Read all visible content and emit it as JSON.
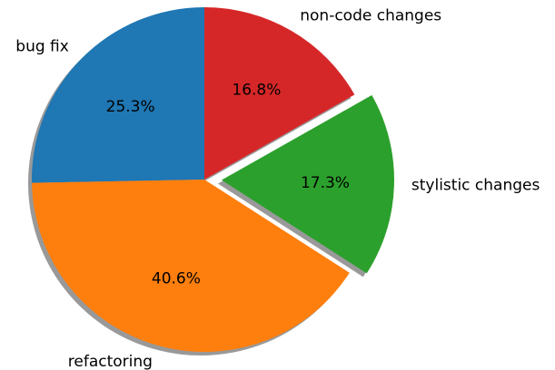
{
  "chart_data": {
    "type": "pie",
    "categories": [
      "bug fix",
      "refactoring",
      "stylistic changes",
      "non-code changes"
    ],
    "values": [
      25.3,
      40.6,
      17.3,
      16.8
    ],
    "value_labels": [
      "25.3%",
      "40.6%",
      "17.3%",
      "16.8%"
    ],
    "colors": [
      "#1f77b4",
      "#ff7f0e",
      "#2ca02c",
      "#d62728"
    ],
    "explode": [
      0,
      0,
      0.1,
      0
    ],
    "startangle": 90,
    "shadow": true
  }
}
